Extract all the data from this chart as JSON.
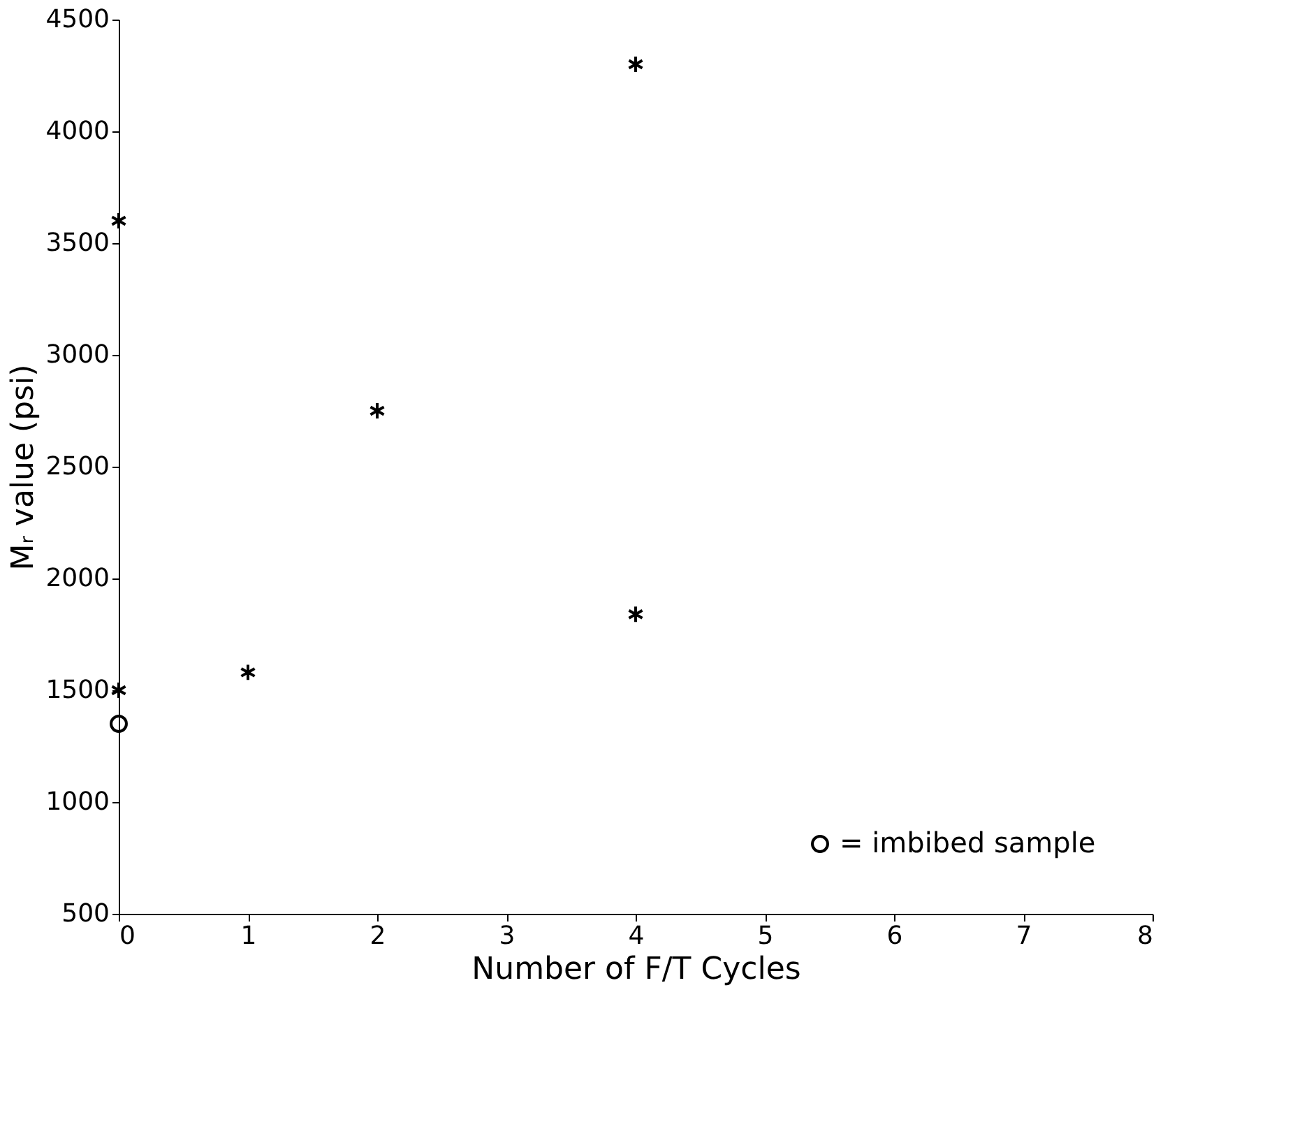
{
  "chart_data": {
    "type": "scatter",
    "xlabel": "Number of F/T Cycles",
    "ylabel": "Mᵣ value (psi)",
    "xlim": [
      0,
      8
    ],
    "xticks": [
      0,
      1,
      2,
      3,
      4,
      5,
      6,
      7,
      8
    ],
    "ylim": [
      500,
      4500
    ],
    "yticks": [
      500,
      1000,
      1500,
      2000,
      2500,
      3000,
      3500,
      4000,
      4500
    ],
    "grid": false,
    "legend": "bottom right",
    "series": [
      {
        "color": "#000000",
        "marker": "cross",
        "x": [
          0,
          0,
          1,
          2,
          4,
          4
        ],
        "values": [
          3600,
          1500,
          1580,
          2750,
          4300,
          1840
        ]
      },
      {
        "name": "= imbibed sample",
        "color": "#000000",
        "marker": "circle",
        "x": [
          0
        ],
        "values": [
          1350
        ]
      }
    ]
  }
}
